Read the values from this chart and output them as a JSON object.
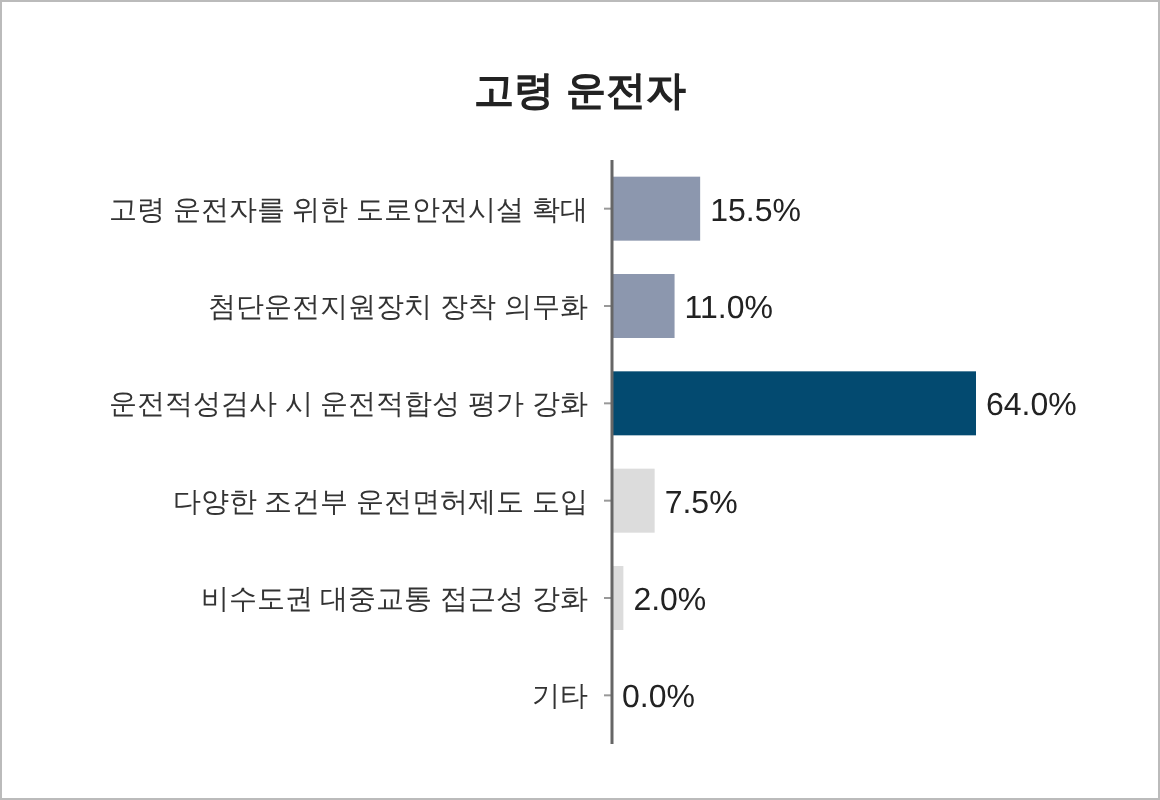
{
  "chart_data": {
    "type": "bar",
    "orientation": "horizontal",
    "title": "고령 운전자",
    "categories": [
      "고령 운전자를 위한 도로안전시설 확대",
      "첨단운전지원장치 장착 의무화",
      "운전적성검사 시 운전적합성 평가 강화",
      "다양한 조건부 운전면허제도 도입",
      "비수도권 대중교통 접근성 강화",
      "기타"
    ],
    "values": [
      15.5,
      11.0,
      64.0,
      7.5,
      2.0,
      0.0
    ],
    "value_labels": [
      "15.5%",
      "11.0%",
      "64.0%",
      "7.5%",
      "2.0%",
      "0.0%"
    ],
    "colors": [
      "#8c97ae",
      "#8c97ae",
      "#034a70",
      "#dcdcdc",
      "#dcdcdc",
      "#dcdcdc"
    ]
  }
}
